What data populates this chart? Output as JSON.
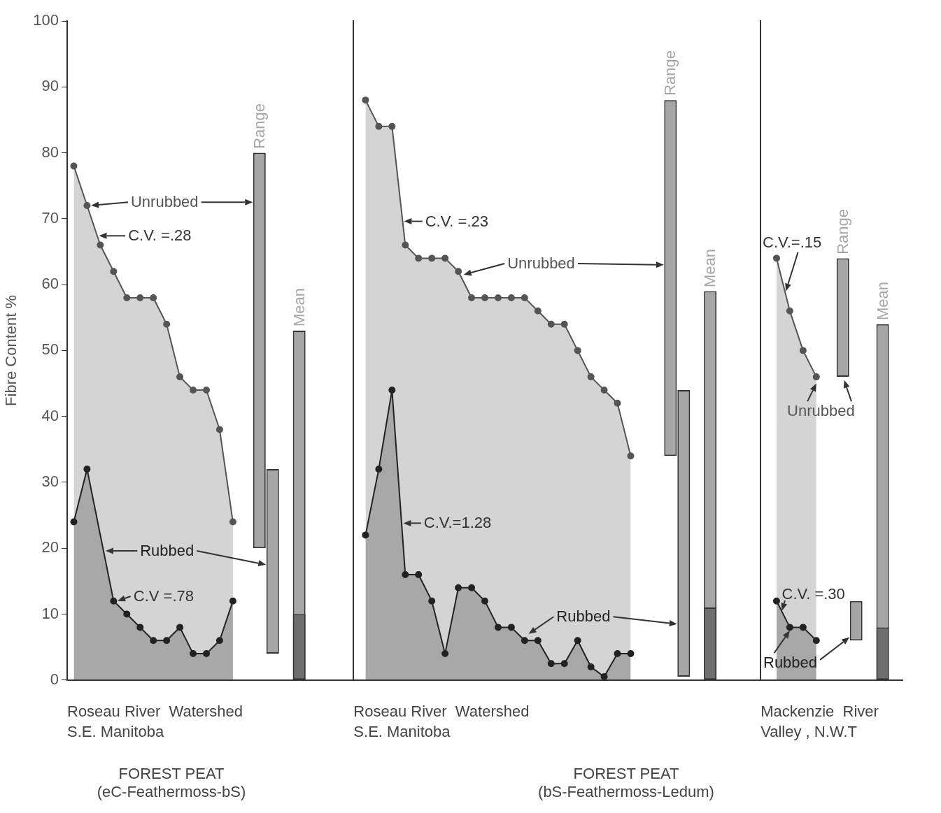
{
  "chart_data": {
    "type": "area",
    "ylabel": "Fibre Content %",
    "ylim": [
      0,
      100
    ],
    "yticks": [
      0,
      10,
      20,
      30,
      40,
      50,
      60,
      70,
      80,
      90,
      100
    ],
    "marker": "circle",
    "categories": [
      null,
      null,
      null,
      null,
      null,
      null,
      null,
      null,
      null,
      null,
      null,
      null,
      null,
      null,
      null,
      null,
      null,
      null,
      null,
      null,
      null,
      null,
      null,
      null,
      null,
      null,
      null,
      null,
      null,
      null,
      null,
      null,
      null,
      null,
      null,
      null,
      null,
      null,
      null,
      null,
      null,
      null,
      null,
      null,
      null,
      null,
      null,
      null,
      null,
      null,
      null,
      null,
      null,
      null,
      null,
      null,
      null,
      null,
      null,
      null,
      null,
      null,
      null
    ],
    "series": [
      {
        "name": "Unrubbed",
        "color": "#555555",
        "values": [
          78,
          72,
          66,
          62,
          58,
          58,
          58,
          54,
          46,
          44,
          44,
          38,
          24,
          null,
          null,
          null,
          null,
          null,
          null,
          null,
          null,
          null,
          null,
          null,
          null,
          null,
          null,
          null,
          null,
          null,
          null,
          null,
          null,
          null,
          null,
          null,
          null,
          null,
          null,
          null,
          null,
          null,
          null,
          null,
          null,
          null,
          null,
          null,
          null,
          null,
          null,
          null,
          null,
          null,
          null,
          null,
          null,
          null,
          null,
          null,
          null,
          null,
          null
        ]
      },
      {
        "name": "Rubbed",
        "color": "#222222",
        "values": [
          24,
          32,
          null,
          12,
          10,
          8,
          6,
          6,
          8,
          4,
          4,
          6,
          12,
          null,
          null,
          null,
          null,
          null,
          null,
          null,
          null,
          null,
          null,
          null,
          null,
          null,
          null,
          null,
          null,
          null,
          null,
          null,
          null,
          null,
          null,
          null,
          null,
          null,
          null,
          null,
          null,
          null,
          null,
          null,
          null,
          null,
          null,
          null,
          null,
          null,
          null,
          null,
          null,
          null,
          null,
          null,
          null,
          null,
          null,
          null,
          null,
          null,
          null
        ]
      },
      {
        "name": "Unrubbed",
        "color": "#555555",
        "values": [
          null,
          null,
          null,
          null,
          null,
          null,
          null,
          null,
          null,
          null,
          null,
          null,
          null,
          null,
          null,
          null,
          null,
          null,
          null,
          null,
          null,
          null,
          88,
          84,
          84,
          66,
          64,
          64,
          64,
          62,
          58,
          58,
          58,
          58,
          58,
          56,
          54,
          54,
          50,
          46,
          44,
          42,
          34,
          null,
          null,
          null,
          null,
          null,
          null,
          null,
          null,
          null,
          null,
          null,
          null,
          null,
          null,
          null,
          null,
          null,
          null,
          null,
          null
        ]
      },
      {
        "name": "Rubbed",
        "color": "#222222",
        "values": [
          null,
          null,
          null,
          null,
          null,
          null,
          null,
          null,
          null,
          null,
          null,
          null,
          null,
          null,
          null,
          null,
          null,
          null,
          null,
          null,
          null,
          null,
          22,
          32,
          44,
          16,
          16,
          12,
          4,
          14,
          14,
          12,
          8,
          8,
          6,
          6,
          2.5,
          2.5,
          6,
          2,
          0.5,
          4,
          4,
          null,
          null,
          null,
          null,
          null,
          null,
          null,
          null,
          null,
          null,
          null,
          null,
          null,
          null,
          null,
          null,
          null,
          null,
          null,
          null
        ]
      },
      {
        "name": "Unrubbed",
        "color": "#555555",
        "values": [
          null,
          null,
          null,
          null,
          null,
          null,
          null,
          null,
          null,
          null,
          null,
          null,
          null,
          null,
          null,
          null,
          null,
          null,
          null,
          null,
          null,
          null,
          null,
          null,
          null,
          null,
          null,
          null,
          null,
          null,
          null,
          null,
          null,
          null,
          null,
          null,
          null,
          null,
          null,
          null,
          null,
          null,
          null,
          null,
          null,
          null,
          null,
          null,
          null,
          null,
          null,
          null,
          null,
          64,
          56,
          50,
          46,
          null,
          null,
          null,
          null,
          null,
          null
        ]
      },
      {
        "name": "Rubbed",
        "color": "#222222",
        "values": [
          null,
          null,
          null,
          null,
          null,
          null,
          null,
          null,
          null,
          null,
          null,
          null,
          null,
          null,
          null,
          null,
          null,
          null,
          null,
          null,
          null,
          null,
          null,
          null,
          null,
          null,
          null,
          null,
          null,
          null,
          null,
          null,
          null,
          null,
          null,
          null,
          null,
          null,
          null,
          null,
          null,
          null,
          null,
          null,
          null,
          null,
          null,
          null,
          null,
          null,
          null,
          null,
          null,
          12,
          8,
          8,
          6,
          null,
          null,
          null,
          null,
          null,
          null
        ]
      },
      {
        "name": "Range",
        "type": "bar",
        "color": "#a6a6a6",
        "values": [
          null,
          null,
          null,
          null,
          null,
          null,
          null,
          null,
          null,
          null,
          null,
          null,
          null,
          null,
          60,
          28,
          null,
          null,
          null,
          null,
          null,
          null,
          null,
          null,
          null,
          null,
          null,
          null,
          null,
          null,
          null,
          null,
          null,
          null,
          null,
          null,
          null,
          null,
          null,
          null,
          null,
          null,
          null,
          null,
          null,
          54,
          43.5,
          null,
          null,
          null,
          null,
          null,
          null,
          null,
          null,
          null,
          null,
          null,
          18,
          6,
          null,
          null,
          null
        ],
        "base": [
          null,
          null,
          null,
          null,
          null,
          null,
          null,
          null,
          null,
          null,
          null,
          null,
          null,
          null,
          20,
          4,
          null,
          null,
          null,
          null,
          null,
          null,
          null,
          null,
          null,
          null,
          null,
          null,
          null,
          null,
          null,
          null,
          null,
          null,
          null,
          null,
          null,
          null,
          null,
          null,
          null,
          null,
          null,
          null,
          null,
          34,
          0.5,
          null,
          null,
          null,
          null,
          null,
          null,
          null,
          null,
          null,
          null,
          null,
          46,
          6,
          null,
          null,
          null
        ]
      },
      {
        "name": "Mean",
        "type": "bar",
        "color": "#a6a6a6",
        "values": [
          null,
          null,
          null,
          null,
          null,
          null,
          null,
          null,
          null,
          null,
          null,
          null,
          null,
          null,
          null,
          null,
          null,
          53,
          null,
          null,
          null,
          null,
          null,
          null,
          null,
          null,
          null,
          null,
          null,
          null,
          null,
          null,
          null,
          null,
          null,
          null,
          null,
          null,
          null,
          null,
          null,
          null,
          null,
          null,
          null,
          null,
          null,
          null,
          59,
          null,
          null,
          null,
          null,
          null,
          null,
          null,
          null,
          null,
          null,
          null,
          null,
          54,
          null
        ]
      },
      {
        "type": "bar",
        "color": "#6e6e6e",
        "values": [
          null,
          null,
          null,
          null,
          null,
          null,
          null,
          null,
          null,
          null,
          null,
          null,
          null,
          null,
          null,
          null,
          null,
          10,
          null,
          null,
          null,
          null,
          null,
          null,
          null,
          null,
          null,
          null,
          null,
          null,
          null,
          null,
          null,
          null,
          null,
          null,
          null,
          null,
          null,
          null,
          null,
          null,
          null,
          null,
          null,
          null,
          null,
          null,
          11,
          null,
          null,
          null,
          null,
          null,
          null,
          null,
          null,
          null,
          null,
          null,
          null,
          8,
          null
        ]
      }
    ],
    "annotations": [
      "C.V. =.28",
      "C.V =.78",
      "C.V. =.23",
      "C.V.=1.28",
      "C.V.=.15",
      "C.V. =.30",
      "Roseau River  Watershed\nS.E. Manitoba",
      "Roseau River  Watershed\nS.E. Manitoba",
      "Mackenzie  River\nValley , N.W.T",
      "FOREST PEAT\n(eC-Feathermoss-bS)",
      "FOREST PEAT\n(bS-Feathermoss-Ledum)"
    ]
  }
}
